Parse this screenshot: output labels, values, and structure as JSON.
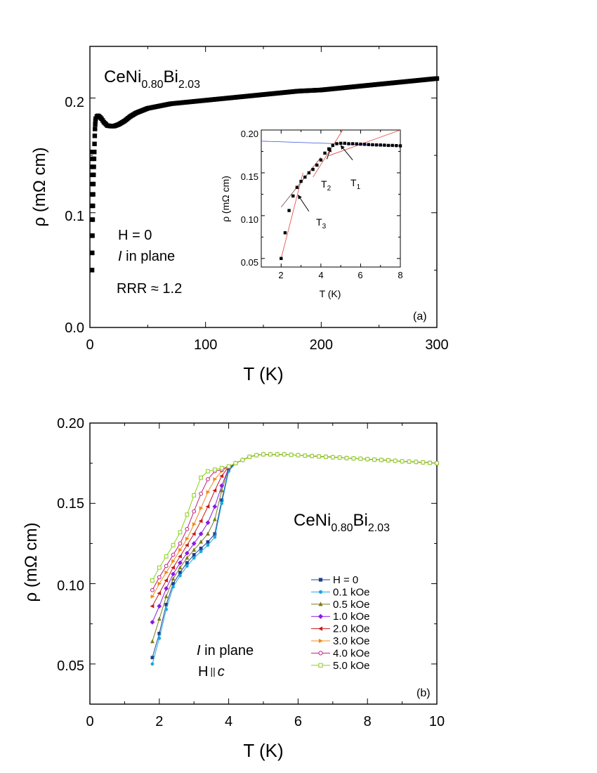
{
  "chart_data": [
    {
      "id": "a",
      "type": "scatter",
      "panel_label": "(a)",
      "xlabel": "T (K)",
      "ylabel": "ρ (mΩ cm)",
      "xlim": [
        0,
        300
      ],
      "ylim": [
        0,
        0.245
      ],
      "xticks": [
        "0",
        "100",
        "200",
        "300"
      ],
      "yticks": [
        "0.0",
        "0.1",
        "0.2"
      ],
      "compound": {
        "base": "CeNi",
        "sub1": "0.80",
        "mid": "Bi",
        "sub2": "2.03"
      },
      "annotations": {
        "field": "H = 0",
        "current_italic": "I",
        "current_rest": " in plane",
        "rrr": "RRR ≈ 1.2"
      },
      "series": [
        {
          "x": [
            1.8,
            2.0,
            2.2,
            2.4,
            2.6,
            2.8,
            3.0,
            3.2,
            3.4,
            3.6,
            3.8,
            4.0,
            4.2,
            4.4,
            4.6,
            4.8,
            5,
            6,
            7,
            8,
            10,
            12,
            15,
            18,
            21,
            25,
            30,
            35,
            40,
            45,
            50,
            60,
            70,
            80,
            90,
            100,
            120,
            140,
            160,
            180,
            200,
            220,
            240,
            260,
            280,
            300
          ],
          "y": [
            0.05,
            0.065,
            0.08,
            0.094,
            0.106,
            0.116,
            0.125,
            0.133,
            0.14,
            0.147,
            0.153,
            0.16,
            0.167,
            0.173,
            0.177,
            0.18,
            0.182,
            0.184,
            0.1845,
            0.184,
            0.182,
            0.179,
            0.176,
            0.1755,
            0.1755,
            0.177,
            0.18,
            0.184,
            0.187,
            0.189,
            0.191,
            0.193,
            0.195,
            0.196,
            0.197,
            0.198,
            0.2,
            0.202,
            0.204,
            0.206,
            0.207,
            0.209,
            0.211,
            0.213,
            0.215,
            0.217
          ]
        }
      ],
      "inset": {
        "xlabel": "T (K)",
        "ylabel": "ρ (mΩ cm)",
        "xlim": [
          1,
          8
        ],
        "ylim": [
          0.04,
          0.2
        ],
        "xticks": [
          "2",
          "4",
          "6",
          "8"
        ],
        "yticks": [
          "0.05",
          "0.10",
          "0.15",
          "0.20"
        ],
        "points_x": [
          2.0,
          2.2,
          2.4,
          2.6,
          2.8,
          3.0,
          3.2,
          3.4,
          3.6,
          3.8,
          4.0,
          4.2,
          4.4,
          4.6,
          4.8,
          5.0,
          5.2,
          5.4,
          5.6,
          5.8,
          6.0,
          6.2,
          6.4,
          6.6,
          6.8,
          7.0,
          7.2,
          7.4,
          7.6,
          7.8,
          8.0
        ],
        "points_y": [
          0.05,
          0.08,
          0.106,
          0.123,
          0.133,
          0.14,
          0.145,
          0.15,
          0.154,
          0.159,
          0.165,
          0.173,
          0.178,
          0.182,
          0.184,
          0.1845,
          0.1845,
          0.184,
          0.184,
          0.1838,
          0.1835,
          0.1833,
          0.183,
          0.1828,
          0.1826,
          0.1825,
          0.1823,
          0.182,
          0.182,
          0.1818,
          0.1815
        ],
        "fit_line": {
          "x": [
            1.0,
            8.0
          ],
          "y": [
            0.187,
            0.1815
          ]
        },
        "tangent_lines": [
          {
            "x": [
              2.0,
              3.1
            ],
            "y": [
              0.05,
              0.15
            ]
          },
          {
            "x": [
              2.0,
              4.0
            ],
            "y": [
              0.11,
              0.168
            ]
          },
          {
            "x": [
              3.6,
              5.1
            ],
            "y": [
              0.145,
              0.2
            ]
          },
          {
            "x": [
              4.4,
              8.0
            ],
            "y": [
              0.17,
              0.2
            ]
          }
        ],
        "arrows": [
          {
            "label": "T",
            "sub": "1",
            "from": [
              5.6,
              0.165
            ],
            "to": [
              5.0,
              0.182
            ]
          },
          {
            "label": "T",
            "sub": "2",
            "from": [
              4.3,
              0.166
            ],
            "to": [
              4.5,
              0.179
            ]
          },
          {
            "label": "T",
            "sub": "3",
            "from": [
              3.4,
              0.105
            ],
            "to": [
              2.85,
              0.124
            ]
          }
        ]
      }
    },
    {
      "id": "b",
      "type": "line",
      "panel_label": "(b)",
      "xlabel": "T (K)",
      "ylabel": "ρ (mΩ cm)",
      "xlim": [
        0,
        10
      ],
      "ylim": [
        0.025,
        0.2
      ],
      "xticks": [
        "0",
        "2",
        "4",
        "6",
        "8",
        "10"
      ],
      "yticks": [
        "0.05",
        "0.10",
        "0.15",
        "0.20"
      ],
      "compound": {
        "base": "CeNi",
        "sub1": "0.80",
        "mid": "Bi",
        "sub2": "2.03"
      },
      "annotations": {
        "current_italic": "I",
        "current_rest": " in plane",
        "field_prefix": "H",
        "field_parallel": "||",
        "field_axis": "c"
      },
      "x": [
        1.8,
        2.0,
        2.2,
        2.4,
        2.6,
        2.8,
        3.0,
        3.2,
        3.4,
        3.6,
        3.8,
        4.0,
        4.2,
        4.4,
        4.6,
        4.8,
        5.0,
        5.2,
        5.4,
        5.6,
        5.8,
        6.0,
        6.2,
        6.4,
        6.6,
        6.8,
        7.0,
        7.2,
        7.4,
        7.6,
        7.8,
        8.0,
        8.2,
        8.4,
        8.6,
        8.8,
        9.0,
        9.2,
        9.4,
        9.6,
        9.8,
        10.0
      ],
      "series": [
        {
          "name": "H =  0",
          "color": "#1f3f8f",
          "marker": "square",
          "values": [
            0.054,
            0.069,
            0.087,
            0.1,
            0.107,
            0.113,
            0.118,
            0.122,
            0.126,
            0.131,
            0.152,
            0.171,
            0.175,
            0.177,
            0.179,
            0.18,
            0.1805,
            0.1805,
            0.1805,
            0.1805,
            0.1802,
            0.18,
            0.1797,
            0.1795,
            0.1792,
            0.179,
            0.1787,
            0.1785,
            0.1782,
            0.178,
            0.1778,
            0.1775,
            0.1772,
            0.177,
            0.1768,
            0.1765,
            0.1762,
            0.176,
            0.1758,
            0.1755,
            0.1752,
            0.175
          ]
        },
        {
          "name": "0.1 kOe",
          "color": "#1aa9e0",
          "marker": "circle",
          "values": [
            0.05,
            0.066,
            0.084,
            0.098,
            0.105,
            0.111,
            0.116,
            0.12,
            0.124,
            0.129,
            0.15,
            0.17,
            0.175,
            0.177,
            0.179,
            0.18,
            0.1805,
            0.1805,
            0.1805,
            0.1805,
            0.1802,
            0.18,
            0.1797,
            0.1795,
            0.1792,
            0.179,
            0.1787,
            0.1785,
            0.1782,
            0.178,
            0.1778,
            0.1775,
            0.1772,
            0.177,
            0.1768,
            0.1765,
            0.1762,
            0.176,
            0.1758,
            0.1755,
            0.1752,
            0.175
          ]
        },
        {
          "name": "0.5 kOe",
          "color": "#7c7a1a",
          "marker": "triangle-up",
          "values": [
            0.064,
            0.078,
            0.092,
            0.103,
            0.11,
            0.116,
            0.121,
            0.126,
            0.131,
            0.14,
            0.158,
            0.172,
            0.175,
            0.177,
            0.179,
            0.18,
            0.1805,
            0.1805,
            0.1805,
            0.1805,
            0.1802,
            0.18,
            0.1797,
            0.1795,
            0.1792,
            0.179,
            0.1787,
            0.1785,
            0.1782,
            0.178,
            0.1778,
            0.1775,
            0.1772,
            0.177,
            0.1768,
            0.1765,
            0.1762,
            0.176,
            0.1758,
            0.1755,
            0.1752,
            0.175
          ]
        },
        {
          "name": "1.0 kOe",
          "color": "#8a1ae6",
          "marker": "diamond",
          "values": [
            0.076,
            0.086,
            0.097,
            0.106,
            0.113,
            0.119,
            0.125,
            0.131,
            0.138,
            0.148,
            0.161,
            0.172,
            0.175,
            0.177,
            0.179,
            0.18,
            0.1805,
            0.1805,
            0.1805,
            0.1805,
            0.1802,
            0.18,
            0.1797,
            0.1795,
            0.1792,
            0.179,
            0.1787,
            0.1785,
            0.1782,
            0.178,
            0.1778,
            0.1775,
            0.1772,
            0.177,
            0.1768,
            0.1765,
            0.1762,
            0.176,
            0.1758,
            0.1755,
            0.1752,
            0.175
          ]
        },
        {
          "name": "2.0 kOe",
          "color": "#c81a1a",
          "marker": "triangle-left",
          "values": [
            0.086,
            0.094,
            0.102,
            0.11,
            0.117,
            0.124,
            0.131,
            0.139,
            0.148,
            0.158,
            0.167,
            0.173,
            0.175,
            0.177,
            0.179,
            0.18,
            0.1805,
            0.1805,
            0.1805,
            0.1805,
            0.1802,
            0.18,
            0.1797,
            0.1795,
            0.1792,
            0.179,
            0.1787,
            0.1785,
            0.1782,
            0.178,
            0.1778,
            0.1775,
            0.1772,
            0.177,
            0.1768,
            0.1765,
            0.1762,
            0.176,
            0.1758,
            0.1755,
            0.1752,
            0.175
          ]
        },
        {
          "name": "3.0 kOe",
          "color": "#f08a1a",
          "marker": "triangle-right",
          "values": [
            0.092,
            0.1,
            0.107,
            0.114,
            0.121,
            0.128,
            0.137,
            0.147,
            0.157,
            0.165,
            0.17,
            0.173,
            0.175,
            0.177,
            0.179,
            0.18,
            0.1805,
            0.1805,
            0.1805,
            0.1805,
            0.1802,
            0.18,
            0.1797,
            0.1795,
            0.1792,
            0.179,
            0.1787,
            0.1785,
            0.1782,
            0.178,
            0.1778,
            0.1775,
            0.1772,
            0.177,
            0.1768,
            0.1765,
            0.1762,
            0.176,
            0.1758,
            0.1755,
            0.1752,
            0.175
          ]
        },
        {
          "name": "4.0 kOe",
          "color": "#c0207a",
          "marker": "circle-open",
          "values": [
            0.096,
            0.104,
            0.111,
            0.118,
            0.125,
            0.134,
            0.145,
            0.156,
            0.165,
            0.17,
            0.171,
            0.173,
            0.175,
            0.177,
            0.179,
            0.18,
            0.1805,
            0.1805,
            0.1805,
            0.1805,
            0.1802,
            0.18,
            0.1797,
            0.1795,
            0.1792,
            0.179,
            0.1787,
            0.1785,
            0.1782,
            0.178,
            0.1778,
            0.1775,
            0.1772,
            0.177,
            0.1768,
            0.1765,
            0.1762,
            0.176,
            0.1758,
            0.1755,
            0.1752,
            0.175
          ]
        },
        {
          "name": "5.0 kOe",
          "color": "#8ad01a",
          "marker": "square-open",
          "values": [
            0.102,
            0.11,
            0.117,
            0.124,
            0.132,
            0.143,
            0.155,
            0.166,
            0.17,
            0.171,
            0.172,
            0.173,
            0.175,
            0.177,
            0.179,
            0.18,
            0.1805,
            0.1805,
            0.1805,
            0.1805,
            0.1802,
            0.18,
            0.1797,
            0.1795,
            0.1792,
            0.179,
            0.1787,
            0.1785,
            0.1782,
            0.178,
            0.1778,
            0.1775,
            0.1772,
            0.177,
            0.1768,
            0.1765,
            0.1762,
            0.176,
            0.1758,
            0.1755,
            0.1752,
            0.175
          ]
        }
      ]
    }
  ]
}
